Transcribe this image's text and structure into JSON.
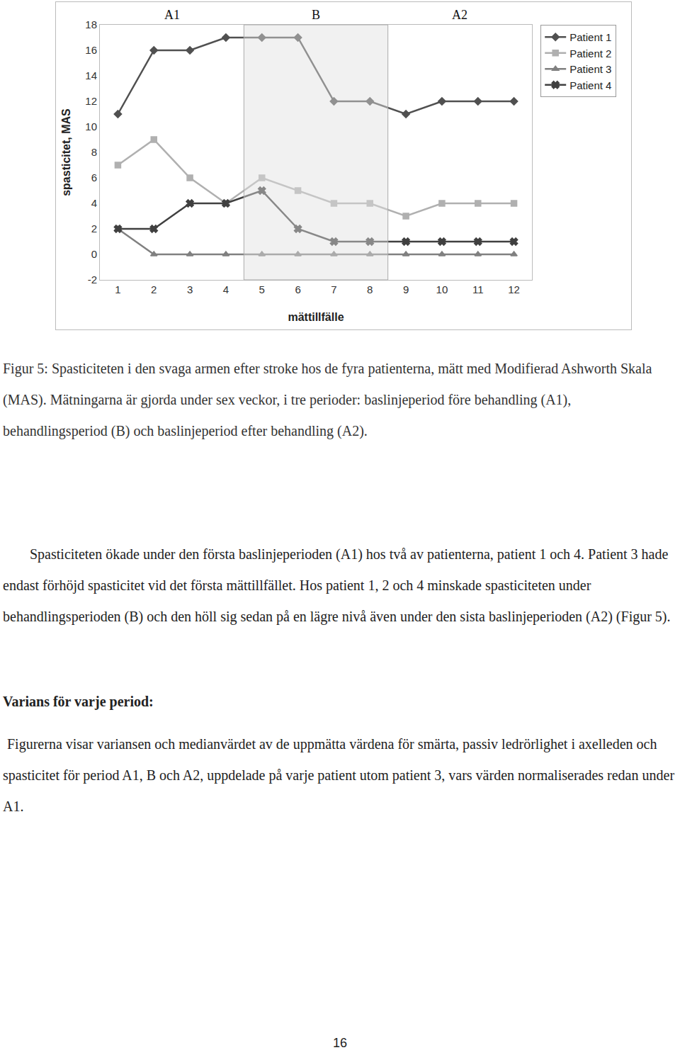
{
  "chart_data": {
    "type": "line",
    "x_label": "mättillfälle",
    "y_label": "spasticitet, MAS",
    "x": [
      1,
      2,
      3,
      4,
      5,
      6,
      7,
      8,
      9,
      10,
      11,
      12
    ],
    "series": [
      {
        "name": "Patient 1",
        "color": "#505050",
        "marker": "diamond",
        "values": [
          11,
          16,
          16,
          17,
          17,
          17,
          12,
          12,
          11,
          12,
          12,
          12
        ]
      },
      {
        "name": "Patient 2",
        "color": "#b0b0b0",
        "marker": "square",
        "values": [
          7,
          9,
          6,
          4,
          6,
          5,
          4,
          4,
          3,
          4,
          4,
          4
        ]
      },
      {
        "name": "Patient 3",
        "color": "#808080",
        "marker": "triangle-up",
        "values": [
          2,
          0,
          0,
          0,
          0,
          0,
          0,
          0,
          0,
          0,
          0,
          0
        ]
      },
      {
        "name": "Patient 4",
        "color": "#404040",
        "marker": "x",
        "values": [
          2,
          2,
          4,
          4,
          5,
          2,
          1,
          1,
          1,
          1,
          1,
          1
        ]
      }
    ],
    "xlim": [
      0.5,
      12.5
    ],
    "xticks": [
      1,
      2,
      3,
      4,
      5,
      6,
      7,
      8,
      9,
      10,
      11,
      12
    ],
    "ylim": [
      -2,
      18
    ],
    "yticks": [
      -2,
      0,
      2,
      4,
      6,
      8,
      10,
      12,
      14,
      16,
      18
    ],
    "grid": false,
    "legend": "top right",
    "periods": [
      {
        "label": "A1",
        "start": 0.5,
        "end": 4.5,
        "shaded": false
      },
      {
        "label": "B",
        "start": 4.5,
        "end": 8.5,
        "shaded": true
      },
      {
        "label": "A2",
        "start": 8.5,
        "end": 12.5,
        "shaded": false
      }
    ]
  },
  "caption": "Figur 5: Spasticiteten i den svaga armen efter stroke hos de fyra patienterna, mätt med Modifierad Ashworth Skala (MAS). Mätningarna är gjorda under sex veckor, i tre perioder: baslinjeperiod före behandling (A1), behandlingsperiod (B) och baslinjeperiod efter behandling (A2).",
  "paragraph_1": "Spasticiteten ökade under den första baslinjeperioden (A1) hos två av patienterna, patient 1 och 4. Patient 3 hade endast förhöjd spasticitet vid det första mättillfället. Hos patient 1, 2 och 4 minskade spasticiteten under behandlingsperioden (B) och den höll sig sedan på en lägre nivå även under den sista baslinjeperioden (A2) (Figur 5).",
  "heading": "Varians för varje period:",
  "paragraph_2": "Figurerna visar variansen och medianvärdet av de uppmätta värdena för smärta, passiv ledrörlighet i axelleden och spasticitet för period A1, B och A2, uppdelade på varje patient utom patient 3, vars värden normaliserades redan under A1.",
  "page_number": "16"
}
